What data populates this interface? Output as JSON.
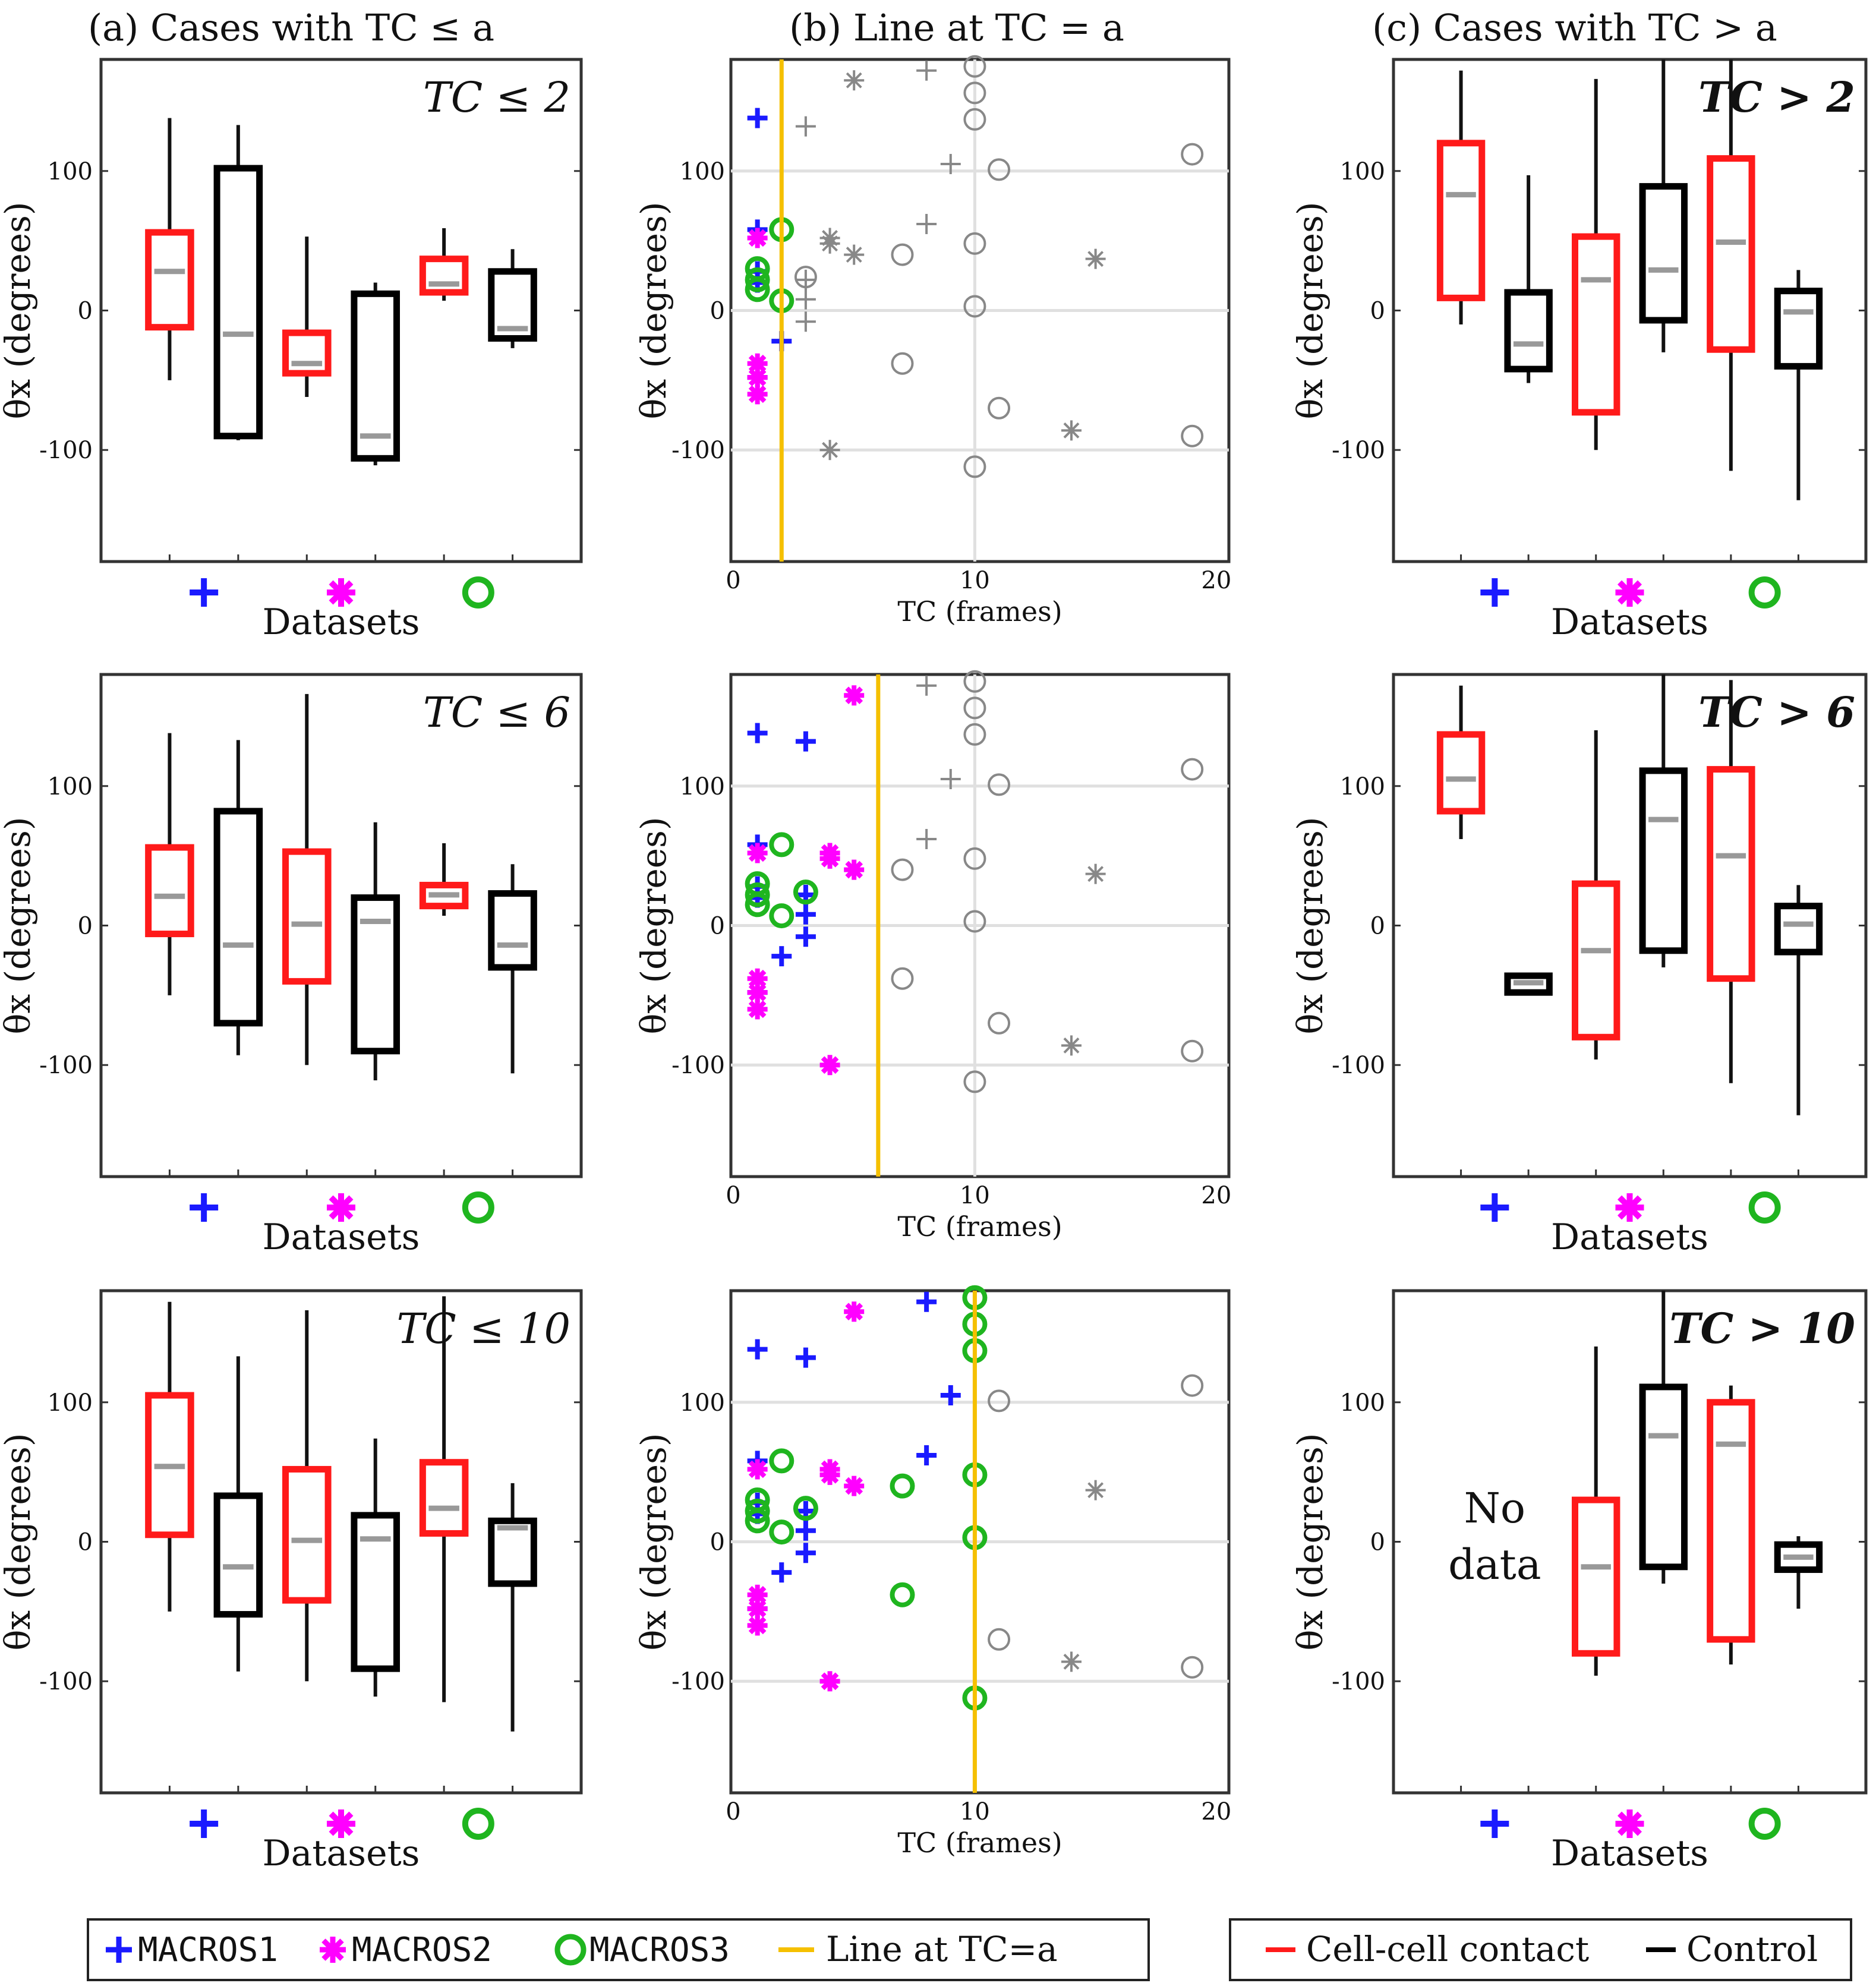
{
  "headers": {
    "a": "(a) Cases with TC ≤ a",
    "b": "(b) Line at TC = a",
    "c": "(c) Cases with TC > a"
  },
  "labels": {
    "ylabel": "θx (degrees)",
    "datasets": "Datasets",
    "tc_axis": "TC (frames)",
    "no_data": [
      "No",
      "data"
    ]
  },
  "legend_datasets": [
    {
      "name": "MACROS1",
      "marker": "plus",
      "color": "#1a1aff"
    },
    {
      "name": "MACROS2",
      "marker": "star",
      "color": "#ff00ff"
    },
    {
      "name": "MACROS3",
      "marker": "circle",
      "color": "#1fb51f"
    },
    {
      "name": "Line at TC=a",
      "marker": "line",
      "color": "#f5c000"
    }
  ],
  "legend_groups": [
    {
      "name": "Cell-cell contact",
      "color": "#ff1a1a"
    },
    {
      "name": "Control",
      "color": "#000000"
    }
  ],
  "colors": {
    "contact": "#ff1a1a",
    "control": "#000000",
    "median": "#999999",
    "grey": "#888888",
    "threshold": "#f5c000",
    "grid": "#e0e0e0"
  },
  "chart_data": [
    {
      "type": "box",
      "panel": "a",
      "row": 0,
      "annotation": "TC ≤ 2",
      "ylim": [
        -180,
        180
      ],
      "yticks": [
        -100,
        0,
        100
      ],
      "boxes": [
        {
          "group": "contact",
          "whisker_low": -50,
          "q1": -12,
          "median": 28,
          "q3": 56,
          "whisker_high": 138
        },
        {
          "group": "control",
          "whisker_low": -93,
          "q1": -90,
          "median": -17,
          "q3": 102,
          "whisker_high": 133
        },
        {
          "group": "contact",
          "whisker_low": -62,
          "q1": -45,
          "median": -38,
          "q3": -16,
          "whisker_high": 53
        },
        {
          "group": "control",
          "whisker_low": -111,
          "q1": -106,
          "median": -90,
          "q3": 12,
          "whisker_high": 20
        },
        {
          "group": "contact",
          "whisker_low": 7,
          "q1": 13,
          "median": 19,
          "q3": 37,
          "whisker_high": 59
        },
        {
          "group": "control",
          "whisker_low": -27,
          "q1": -20,
          "median": -13,
          "q3": 28,
          "whisker_high": 44
        }
      ]
    },
    {
      "type": "box",
      "panel": "a",
      "row": 1,
      "annotation": "TC ≤ 6",
      "ylim": [
        -180,
        180
      ],
      "yticks": [
        -100,
        0,
        100
      ],
      "boxes": [
        {
          "group": "contact",
          "whisker_low": -50,
          "q1": -6,
          "median": 21,
          "q3": 56,
          "whisker_high": 138
        },
        {
          "group": "control",
          "whisker_low": -93,
          "q1": -70,
          "median": -14,
          "q3": 82,
          "whisker_high": 133
        },
        {
          "group": "contact",
          "whisker_low": -100,
          "q1": -40,
          "median": 1,
          "q3": 53,
          "whisker_high": 166
        },
        {
          "group": "control",
          "whisker_low": -111,
          "q1": -90,
          "median": 3,
          "q3": 20,
          "whisker_high": 74
        },
        {
          "group": "contact",
          "whisker_low": 7,
          "q1": 14,
          "median": 22,
          "q3": 29,
          "whisker_high": 59
        },
        {
          "group": "control",
          "whisker_low": -106,
          "q1": -30,
          "median": -14,
          "q3": 23,
          "whisker_high": 44
        }
      ]
    },
    {
      "type": "box",
      "panel": "a",
      "row": 2,
      "annotation": "TC ≤ 10",
      "ylim": [
        -180,
        180
      ],
      "yticks": [
        -100,
        0,
        100
      ],
      "boxes": [
        {
          "group": "contact",
          "whisker_low": -50,
          "q1": 5,
          "median": 54,
          "q3": 105,
          "whisker_high": 172
        },
        {
          "group": "control",
          "whisker_low": -93,
          "q1": -52,
          "median": -18,
          "q3": 33,
          "whisker_high": 133
        },
        {
          "group": "contact",
          "whisker_low": -100,
          "q1": -42,
          "median": 1,
          "q3": 52,
          "whisker_high": 166
        },
        {
          "group": "control",
          "whisker_low": -111,
          "q1": -91,
          "median": 2,
          "q3": 19,
          "whisker_high": 74
        },
        {
          "group": "contact",
          "whisker_low": -115,
          "q1": 6,
          "median": 24,
          "q3": 57,
          "whisker_high": 176
        },
        {
          "group": "control",
          "whisker_low": -136,
          "q1": -30,
          "median": 10,
          "q3": 15,
          "whisker_high": 42
        }
      ]
    },
    {
      "type": "box",
      "panel": "c",
      "row": 0,
      "annotation": "TC > 2",
      "ylim": [
        -180,
        180
      ],
      "yticks": [
        -100,
        0,
        100
      ],
      "boxes": [
        {
          "group": "contact",
          "whisker_low": -10,
          "q1": 9,
          "median": 83,
          "q3": 120,
          "whisker_high": 172
        },
        {
          "group": "control",
          "whisker_low": -52,
          "q1": -42,
          "median": -24,
          "q3": 13,
          "whisker_high": 97
        },
        {
          "group": "contact",
          "whisker_low": -100,
          "q1": -73,
          "median": 22,
          "q3": 53,
          "whisker_high": 166
        },
        {
          "group": "control",
          "whisker_low": -30,
          "q1": -7,
          "median": 29,
          "q3": 89,
          "whisker_high": 180
        },
        {
          "group": "contact",
          "whisker_low": -115,
          "q1": -28,
          "median": 49,
          "q3": 109,
          "whisker_high": 180
        },
        {
          "group": "control",
          "whisker_low": -136,
          "q1": -40,
          "median": -1,
          "q3": 14,
          "whisker_high": 29
        }
      ]
    },
    {
      "type": "box",
      "panel": "c",
      "row": 1,
      "annotation": "TC > 6",
      "ylim": [
        -180,
        180
      ],
      "yticks": [
        -100,
        0,
        100
      ],
      "boxes": [
        {
          "group": "contact",
          "whisker_low": 62,
          "q1": 82,
          "median": 105,
          "q3": 137,
          "whisker_high": 172
        },
        {
          "group": "control",
          "whisker_low": -50,
          "q1": -48,
          "median": -41,
          "q3": -36,
          "whisker_high": -36
        },
        {
          "group": "contact",
          "whisker_low": -96,
          "q1": -80,
          "median": -18,
          "q3": 30,
          "whisker_high": 140
        },
        {
          "group": "control",
          "whisker_low": -30,
          "q1": -18,
          "median": 76,
          "q3": 111,
          "whisker_high": 180
        },
        {
          "group": "contact",
          "whisker_low": -113,
          "q1": -38,
          "median": 50,
          "q3": 112,
          "whisker_high": 176
        },
        {
          "group": "control",
          "whisker_low": -136,
          "q1": -19,
          "median": 1,
          "q3": 14,
          "whisker_high": 29
        }
      ]
    },
    {
      "type": "box",
      "panel": "c",
      "row": 2,
      "annotation": "TC > 10",
      "ylim": [
        -180,
        180
      ],
      "yticks": [
        -100,
        0,
        100
      ],
      "boxes": [
        {
          "group": "contact",
          "whisker_low": -96,
          "q1": -80,
          "median": -18,
          "q3": 30,
          "whisker_high": 140
        },
        {
          "group": "control",
          "whisker_low": -30,
          "q1": -18,
          "median": 76,
          "q3": 111,
          "whisker_high": 180
        },
        {
          "group": "contact",
          "whisker_low": -88,
          "q1": -70,
          "median": 70,
          "q3": 100,
          "whisker_high": 112
        },
        {
          "group": "control",
          "whisker_low": -48,
          "q1": -20,
          "median": -11,
          "q3": -2,
          "whisker_high": 4
        }
      ],
      "skip_first_pair": true
    },
    {
      "type": "scatter",
      "panel": "b",
      "row": 0,
      "threshold": 2,
      "xlim": [
        0,
        20
      ],
      "ylim": [
        -180,
        180
      ],
      "xticks": [
        0,
        10,
        20
      ],
      "yticks": [
        -100,
        0,
        100
      ],
      "grid": true
    },
    {
      "type": "scatter",
      "panel": "b",
      "row": 1,
      "threshold": 6,
      "xlim": [
        0,
        20
      ],
      "ylim": [
        -180,
        180
      ],
      "xticks": [
        0,
        10,
        20
      ],
      "yticks": [
        -100,
        0,
        100
      ],
      "grid": true
    },
    {
      "type": "scatter",
      "panel": "b",
      "row": 2,
      "threshold": 10,
      "xlim": [
        0,
        20
      ],
      "ylim": [
        -180,
        180
      ],
      "xticks": [
        0,
        10,
        20
      ],
      "yticks": [
        -100,
        0,
        100
      ],
      "grid": true
    },
    {
      "type": "scatter_points",
      "series": [
        {
          "name": "MACROS1",
          "marker": "plus",
          "points": [
            [
              1,
              138
            ],
            [
              1,
              58
            ],
            [
              1,
              28
            ],
            [
              1,
              20
            ],
            [
              1,
              -48
            ],
            [
              2,
              -22
            ],
            [
              3,
              132
            ],
            [
              3,
              22
            ],
            [
              3,
              8
            ],
            [
              3,
              -8
            ],
            [
              8,
              172
            ],
            [
              8,
              62
            ],
            [
              9,
              105
            ]
          ]
        },
        {
          "name": "MACROS2",
          "marker": "star",
          "points": [
            [
              1,
              52
            ],
            [
              1,
              -38
            ],
            [
              1,
              -48
            ],
            [
              1,
              -60
            ],
            [
              4,
              52
            ],
            [
              4,
              48
            ],
            [
              4,
              -100
            ],
            [
              5,
              165
            ],
            [
              5,
              40
            ],
            [
              14,
              -86
            ],
            [
              15,
              37
            ]
          ]
        },
        {
          "name": "MACROS3",
          "marker": "circle",
          "points": [
            [
              1,
              30
            ],
            [
              1,
              22
            ],
            [
              1,
              15
            ],
            [
              2,
              58
            ],
            [
              2,
              7
            ],
            [
              3,
              24
            ],
            [
              7,
              40
            ],
            [
              7,
              -38
            ],
            [
              10,
              175
            ],
            [
              10,
              156
            ],
            [
              10,
              137
            ],
            [
              10,
              48
            ],
            [
              10,
              3
            ],
            [
              10,
              -112
            ],
            [
              11,
              101
            ],
            [
              11,
              -70
            ],
            [
              19,
              112
            ],
            [
              19,
              -90
            ]
          ]
        }
      ]
    }
  ],
  "row_tick_labels": [
    "100",
    "0",
    "-100"
  ],
  "x_tick_labels": [
    "0",
    "10",
    "20"
  ]
}
